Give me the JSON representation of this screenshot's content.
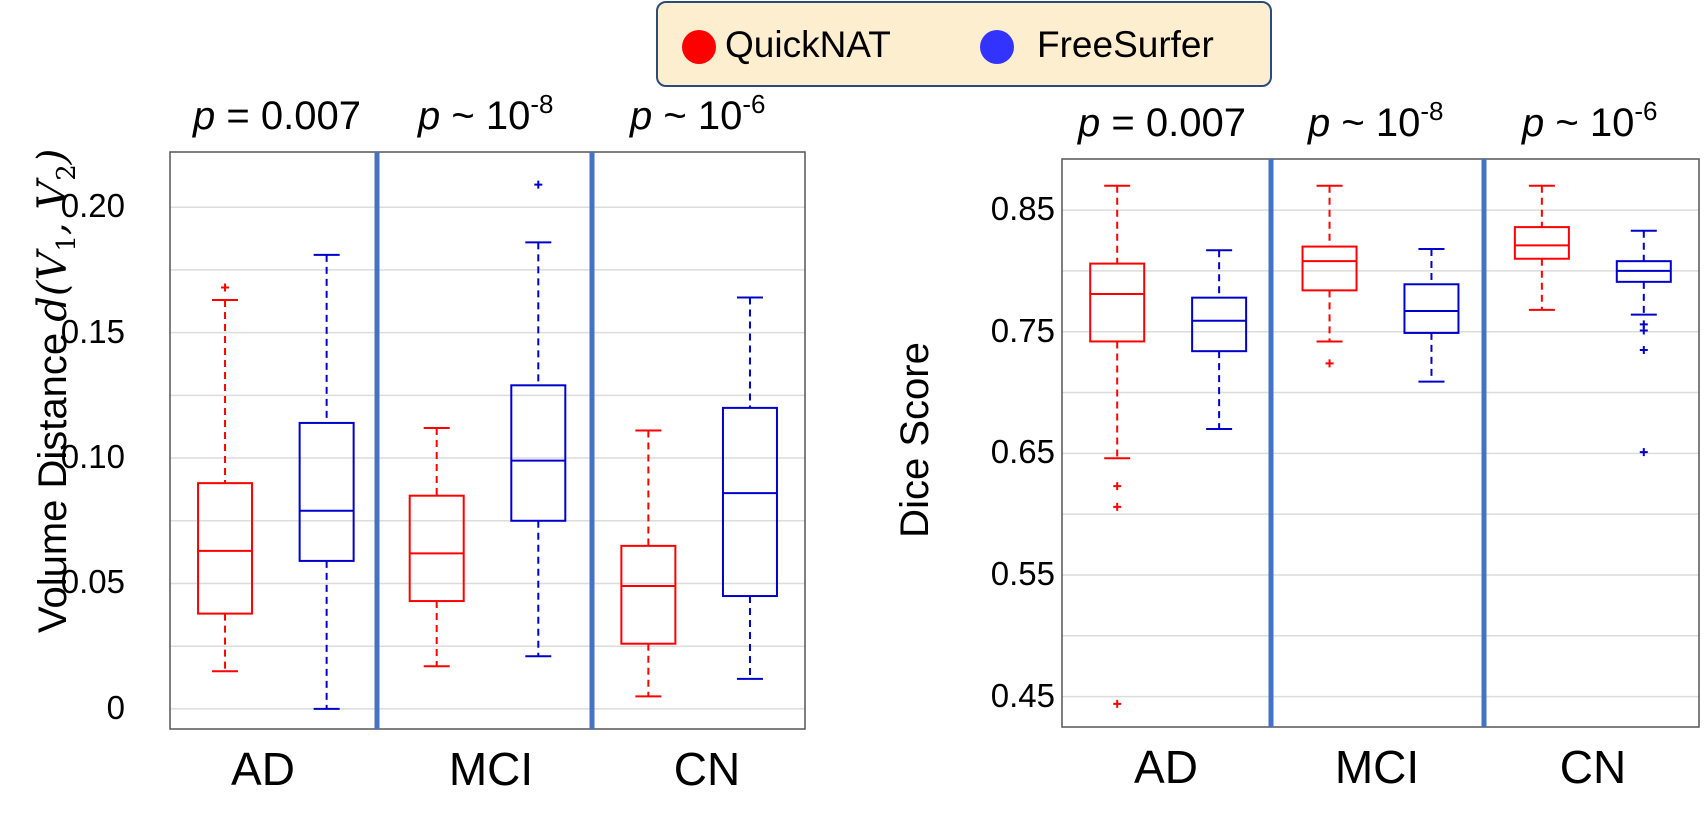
{
  "legend": {
    "items": [
      {
        "label": "QuickNAT",
        "color": "#ff0000"
      },
      {
        "label": "FreeSurfer",
        "color": "#3333ff"
      }
    ]
  },
  "chart_data": [
    {
      "type": "box",
      "ylabel_text": "Volume Distance ",
      "ylabel_math": "d(V",
      "ylabel_math_sub1": "1",
      "ylabel_math_mid": ", V",
      "ylabel_math_sub2": "2",
      "ylabel_math_end": ")",
      "ylim": [
        -0.008,
        0.222
      ],
      "yticks": [
        0,
        0.05,
        0.1,
        0.15,
        0.2
      ],
      "ytick_labels": [
        "0",
        "0.05",
        "0.10",
        "0.15",
        "0.20"
      ],
      "grid": true,
      "categories": [
        "AD",
        "MCI",
        "CN"
      ],
      "pvalues": [
        {
          "prefix": "p",
          "op": " = ",
          "value": "0.007",
          "exp": ""
        },
        {
          "prefix": "p",
          "op": " ~ ",
          "value": "10",
          "exp": "-8"
        },
        {
          "prefix": "p",
          "op": " ~ ",
          "value": "10",
          "exp": "-6"
        }
      ],
      "series": [
        {
          "name": "QuickNAT",
          "color": "#ff0000",
          "boxes": [
            {
              "min": 0.015,
              "q1": 0.038,
              "median": 0.063,
              "q3": 0.09,
              "max": 0.163,
              "outliers": [
                0.168
              ]
            },
            {
              "min": 0.017,
              "q1": 0.043,
              "median": 0.062,
              "q3": 0.085,
              "max": 0.112,
              "outliers": []
            },
            {
              "min": 0.005,
              "q1": 0.026,
              "median": 0.049,
              "q3": 0.065,
              "max": 0.111,
              "outliers": []
            }
          ]
        },
        {
          "name": "FreeSurfer",
          "color": "#0000cc",
          "boxes": [
            {
              "min": 0.0,
              "q1": 0.059,
              "median": 0.079,
              "q3": 0.114,
              "max": 0.181,
              "outliers": []
            },
            {
              "min": 0.021,
              "q1": 0.075,
              "median": 0.099,
              "q3": 0.129,
              "max": 0.186,
              "outliers": [
                0.209
              ]
            },
            {
              "min": 0.012,
              "q1": 0.045,
              "median": 0.086,
              "q3": 0.12,
              "max": 0.164,
              "outliers": []
            }
          ]
        }
      ]
    },
    {
      "type": "box",
      "ylabel_text": "Dice Score",
      "ylim": [
        0.425,
        0.892
      ],
      "yticks": [
        0.45,
        0.55,
        0.65,
        0.75,
        0.85
      ],
      "ytick_labels": [
        "0.45",
        "0.55",
        "0.65",
        "0.75",
        "0.85"
      ],
      "grid": true,
      "categories": [
        "AD",
        "MCI",
        "CN"
      ],
      "pvalues": [
        {
          "prefix": "p",
          "op": " = ",
          "value": "0.007",
          "exp": ""
        },
        {
          "prefix": "p",
          "op": " ~ ",
          "value": "10",
          "exp": "-8"
        },
        {
          "prefix": "p",
          "op": " ~ ",
          "value": "10",
          "exp": "-6"
        }
      ],
      "series": [
        {
          "name": "QuickNAT",
          "color": "#ff0000",
          "boxes": [
            {
              "min": 0.646,
              "q1": 0.742,
              "median": 0.781,
              "q3": 0.806,
              "max": 0.87,
              "outliers": [
                0.623,
                0.606,
                0.444
              ]
            },
            {
              "min": 0.742,
              "q1": 0.784,
              "median": 0.808,
              "q3": 0.82,
              "max": 0.87,
              "outliers": [
                0.724
              ]
            },
            {
              "min": 0.768,
              "q1": 0.81,
              "median": 0.821,
              "q3": 0.836,
              "max": 0.87,
              "outliers": []
            }
          ]
        },
        {
          "name": "FreeSurfer",
          "color": "#0000cc",
          "boxes": [
            {
              "min": 0.67,
              "q1": 0.734,
              "median": 0.759,
              "q3": 0.778,
              "max": 0.817,
              "outliers": []
            },
            {
              "min": 0.709,
              "q1": 0.749,
              "median": 0.767,
              "q3": 0.789,
              "max": 0.818,
              "outliers": []
            },
            {
              "min": 0.764,
              "q1": 0.791,
              "median": 0.8,
              "q3": 0.808,
              "max": 0.833,
              "outliers": [
                0.756,
                0.751,
                0.735,
                0.651
              ]
            }
          ]
        }
      ]
    }
  ]
}
